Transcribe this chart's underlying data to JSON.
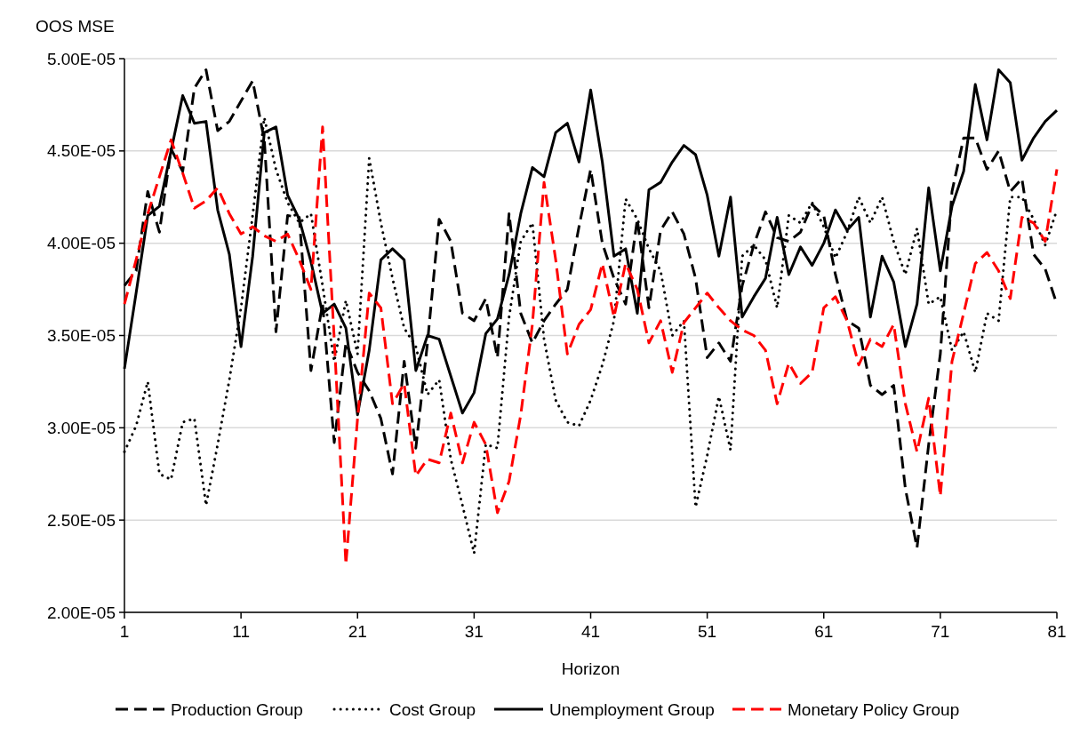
{
  "chart_data": {
    "type": "line",
    "xlabel": "Horizon",
    "ylabel": "OOS MSE",
    "x": [
      1,
      2,
      3,
      4,
      5,
      6,
      7,
      8,
      9,
      10,
      11,
      12,
      13,
      14,
      15,
      16,
      17,
      18,
      19,
      20,
      21,
      22,
      23,
      24,
      25,
      26,
      27,
      28,
      29,
      30,
      31,
      32,
      33,
      34,
      35,
      36,
      37,
      38,
      39,
      40,
      41,
      42,
      43,
      44,
      45,
      46,
      47,
      48,
      49,
      50,
      51,
      52,
      53,
      54,
      55,
      56,
      57,
      58,
      59,
      60,
      61,
      62,
      63,
      64,
      65,
      66,
      67,
      68,
      69,
      70,
      71,
      72,
      73,
      74,
      75,
      76,
      77,
      78,
      79,
      80,
      81
    ],
    "xlim": [
      1,
      81
    ],
    "xticks": [
      1,
      11,
      21,
      31,
      41,
      51,
      61,
      71,
      81
    ],
    "ylim": [
      2e-05,
      5e-05
    ],
    "yticks": [
      {
        "value": 2e-05,
        "label": "2.00E-05"
      },
      {
        "value": 2.5e-05,
        "label": "2.50E-05"
      },
      {
        "value": 3e-05,
        "label": "3.00E-05"
      },
      {
        "value": 3.5e-05,
        "label": "3.50E-05"
      },
      {
        "value": 4e-05,
        "label": "4.00E-05"
      },
      {
        "value": 4.5e-05,
        "label": "4.50E-05"
      },
      {
        "value": 5e-05,
        "label": "5.00E-05"
      }
    ],
    "grid": "y",
    "legend": "bottom",
    "marker": "none",
    "series": [
      {
        "name": "Production Group",
        "color": "#000000",
        "line_style": "dashed",
        "values": [
          3.77e-05,
          3.85e-05,
          4.28e-05,
          4.06e-05,
          4.51e-05,
          4.39e-05,
          4.84e-05,
          4.94e-05,
          4.61e-05,
          4.66e-05,
          4.77e-05,
          4.88e-05,
          4.56e-05,
          3.52e-05,
          4.15e-05,
          4.14e-05,
          3.31e-05,
          3.67e-05,
          2.92e-05,
          3.46e-05,
          3.3e-05,
          3.2e-05,
          3.05e-05,
          2.75e-05,
          3.36e-05,
          2.89e-05,
          3.46e-05,
          4.13e-05,
          4.01e-05,
          3.62e-05,
          3.58e-05,
          3.7e-05,
          3.38e-05,
          4.16e-05,
          3.62e-05,
          3.46e-05,
          3.58e-05,
          3.67e-05,
          3.75e-05,
          4.09e-05,
          4.4e-05,
          4e-05,
          3.81e-05,
          3.67e-05,
          4.13e-05,
          3.65e-05,
          4.07e-05,
          4.17e-05,
          4.05e-05,
          3.81e-05,
          3.38e-05,
          3.46e-05,
          3.36e-05,
          3.77e-05,
          3.99e-05,
          4.17e-05,
          4.03e-05,
          4.01e-05,
          4.06e-05,
          4.21e-05,
          4.15e-05,
          3.83e-05,
          3.58e-05,
          3.54e-05,
          3.23e-05,
          3.18e-05,
          3.23e-05,
          2.67e-05,
          2.35e-05,
          2.91e-05,
          3.4e-05,
          4.28e-05,
          4.57e-05,
          4.57e-05,
          4.4e-05,
          4.5e-05,
          4.28e-05,
          4.35e-05,
          3.94e-05,
          3.86e-05,
          3.67e-05
        ]
      },
      {
        "name": "Cost Group",
        "color": "#000000",
        "line_style": "dotted",
        "values": [
          2.87e-05,
          3.01e-05,
          3.25e-05,
          2.75e-05,
          2.72e-05,
          3.03e-05,
          3.05e-05,
          2.58e-05,
          2.91e-05,
          3.26e-05,
          3.65e-05,
          4.15e-05,
          4.68e-05,
          4.4e-05,
          4.22e-05,
          4.11e-05,
          4.16e-05,
          3.77e-05,
          3.36e-05,
          3.69e-05,
          3.4e-05,
          4.46e-05,
          4.11e-05,
          3.81e-05,
          3.54e-05,
          3.44e-05,
          3.18e-05,
          3.26e-05,
          2.83e-05,
          2.58e-05,
          2.32e-05,
          2.91e-05,
          2.89e-05,
          3.6e-05,
          4.01e-05,
          4.11e-05,
          3.48e-05,
          3.15e-05,
          3.03e-05,
          3.01e-05,
          3.15e-05,
          3.34e-05,
          3.58e-05,
          4.24e-05,
          4.13e-05,
          3.97e-05,
          3.85e-05,
          3.5e-05,
          3.58e-05,
          2.57e-05,
          2.85e-05,
          3.17e-05,
          2.88e-05,
          3.93e-05,
          3.99e-05,
          3.91e-05,
          3.65e-05,
          4.15e-05,
          4.11e-05,
          4.22e-05,
          4.09e-05,
          3.92e-05,
          4.06e-05,
          4.25e-05,
          4.11e-05,
          4.25e-05,
          4.01e-05,
          3.83e-05,
          4.08e-05,
          3.67e-05,
          3.71e-05,
          3.42e-05,
          3.52e-05,
          3.3e-05,
          3.62e-05,
          3.58e-05,
          4.25e-05,
          4.25e-05,
          4.13e-05,
          3.99e-05,
          4.18e-05
        ]
      },
      {
        "name": "Unemployment Group",
        "color": "#000000",
        "line_style": "solid",
        "values": [
          3.32e-05,
          3.73e-05,
          4.15e-05,
          4.2e-05,
          4.5e-05,
          4.8e-05,
          4.65e-05,
          4.66e-05,
          4.18e-05,
          3.94e-05,
          3.44e-05,
          3.93e-05,
          4.6e-05,
          4.63e-05,
          4.26e-05,
          4.13e-05,
          3.9e-05,
          3.62e-05,
          3.67e-05,
          3.54e-05,
          3.07e-05,
          3.42e-05,
          3.91e-05,
          3.97e-05,
          3.91e-05,
          3.31e-05,
          3.5e-05,
          3.48e-05,
          3.28e-05,
          3.08e-05,
          3.19e-05,
          3.51e-05,
          3.59e-05,
          3.83e-05,
          4.16e-05,
          4.41e-05,
          4.36e-05,
          4.6e-05,
          4.65e-05,
          4.44e-05,
          4.83e-05,
          4.44e-05,
          3.93e-05,
          3.97e-05,
          3.62e-05,
          4.29e-05,
          4.33e-05,
          4.44e-05,
          4.53e-05,
          4.48e-05,
          4.26e-05,
          3.93e-05,
          4.25e-05,
          3.6e-05,
          3.71e-05,
          3.81e-05,
          4.14e-05,
          3.83e-05,
          3.98e-05,
          3.88e-05,
          4e-05,
          4.18e-05,
          4.07e-05,
          4.14e-05,
          3.6e-05,
          3.93e-05,
          3.79e-05,
          3.44e-05,
          3.67e-05,
          4.3e-05,
          3.85e-05,
          4.2e-05,
          4.39e-05,
          4.86e-05,
          4.56e-05,
          4.94e-05,
          4.87e-05,
          4.45e-05,
          4.57e-05,
          4.66e-05,
          4.72e-05
        ]
      },
      {
        "name": "Monetary Policy Group",
        "color": "#ff0000",
        "line_style": "dashed",
        "values": [
          3.67e-05,
          3.91e-05,
          4.16e-05,
          4.36e-05,
          4.56e-05,
          4.38e-05,
          4.19e-05,
          4.23e-05,
          4.3e-05,
          4.16e-05,
          4.05e-05,
          4.09e-05,
          4.04e-05,
          4.01e-05,
          4.05e-05,
          3.91e-05,
          3.75e-05,
          4.63e-05,
          3.48e-05,
          2.26e-05,
          3.05e-05,
          3.73e-05,
          3.65e-05,
          3.13e-05,
          3.24e-05,
          2.74e-05,
          2.83e-05,
          2.81e-05,
          3.08e-05,
          2.81e-05,
          3.03e-05,
          2.91e-05,
          2.54e-05,
          2.71e-05,
          3.07e-05,
          3.56e-05,
          4.33e-05,
          3.91e-05,
          3.4e-05,
          3.56e-05,
          3.64e-05,
          3.89e-05,
          3.6e-05,
          3.89e-05,
          3.75e-05,
          3.46e-05,
          3.58e-05,
          3.3e-05,
          3.57e-05,
          3.65e-05,
          3.73e-05,
          3.65e-05,
          3.58e-05,
          3.53e-05,
          3.5e-05,
          3.42e-05,
          3.13e-05,
          3.35e-05,
          3.24e-05,
          3.3e-05,
          3.65e-05,
          3.71e-05,
          3.58e-05,
          3.34e-05,
          3.48e-05,
          3.44e-05,
          3.56e-05,
          3.13e-05,
          2.87e-05,
          3.16e-05,
          2.63e-05,
          3.36e-05,
          3.62e-05,
          3.89e-05,
          3.95e-05,
          3.85e-05,
          3.7e-05,
          4.14e-05,
          4.11e-05,
          4.01e-05,
          4.4e-05
        ]
      }
    ]
  }
}
